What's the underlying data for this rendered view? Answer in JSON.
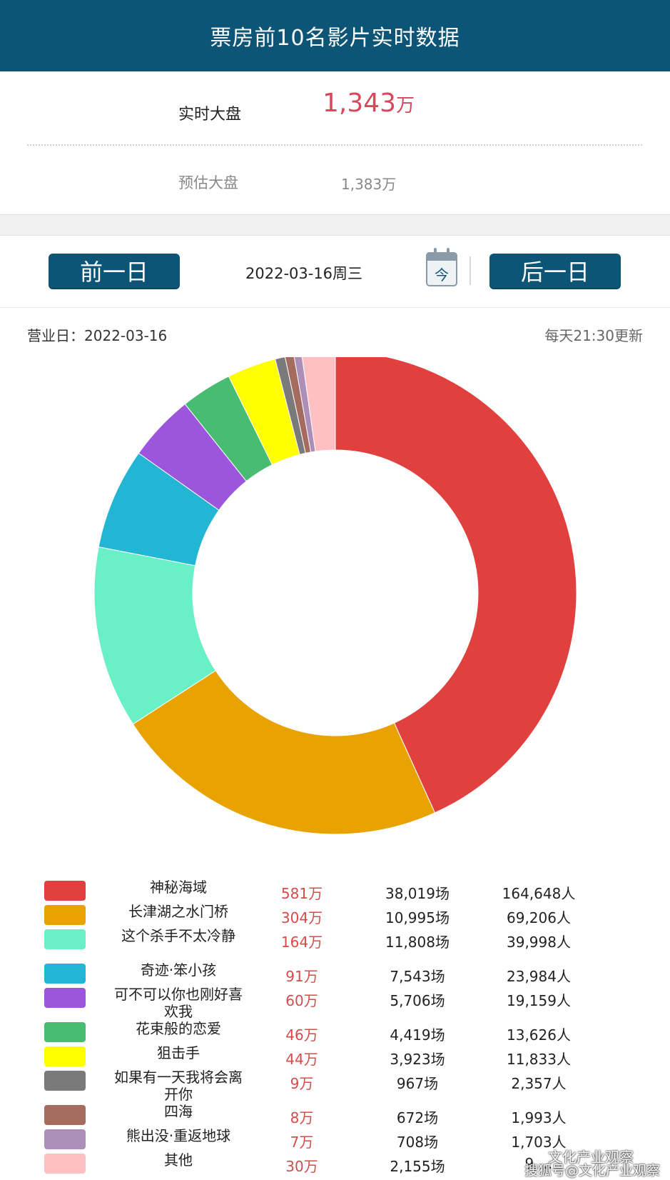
{
  "header": {
    "title": "票房前10名影片实时数据"
  },
  "summary": {
    "live_label": "实时大盘",
    "live_value": "1,343",
    "live_unit": "万",
    "estimate_label": "预估大盘",
    "estimate_value": "1,383万"
  },
  "nav": {
    "prev_label": "前一日",
    "next_label": "后一日",
    "date": "2022-03-16周三",
    "calendar_glyph": "今"
  },
  "info": {
    "business_day": "营业日：2022-03-16",
    "update_note": "每天21:30更新"
  },
  "chart_data": {
    "type": "pie",
    "categories": [
      "神秘海域",
      "长津湖之水门桥",
      "这个杀手不太冷静",
      "奇迹·笨小孩",
      "可不可以你也刚好喜欢我",
      "花束般的恋爱",
      "狙击手",
      "如果有一天我将会离开你",
      "四海",
      "熊出没·重返地球",
      "其他"
    ],
    "values": [
      581,
      304,
      164,
      91,
      60,
      46,
      44,
      9,
      8,
      7,
      30
    ],
    "colors": [
      "#e0403e",
      "#e8a303",
      "#6af0c7",
      "#22b6d4",
      "#9c55dd",
      "#48bd72",
      "#ffff00",
      "#7a7a7a",
      "#a56b5e",
      "#ad8eb8",
      "#ffc0c4"
    ]
  },
  "legend": [
    {
      "name": "神秘海域",
      "box": "581万",
      "shows": "38,019场",
      "people": "164,648人"
    },
    {
      "name": "长津湖之水门桥",
      "box": "304万",
      "shows": "10,995场",
      "people": "69,206人"
    },
    {
      "name": "这个杀手不太冷静",
      "box": "164万",
      "shows": "11,808场",
      "people": "39,998人"
    },
    {
      "name": "奇迹·笨小孩",
      "box": "91万",
      "shows": "7,543场",
      "people": "23,984人"
    },
    {
      "name": "可不可以你也刚好喜欢我",
      "box": "60万",
      "shows": "5,706场",
      "people": "19,159人"
    },
    {
      "name": "花束般的恋爱",
      "box": "46万",
      "shows": "4,419场",
      "people": "13,626人"
    },
    {
      "name": "狙击手",
      "box": "44万",
      "shows": "3,923场",
      "people": "11,833人"
    },
    {
      "name": "如果有一天我将会离开你",
      "box": "9万",
      "shows": "967场",
      "people": "2,357人"
    },
    {
      "name": "四海",
      "box": "8万",
      "shows": "672场",
      "people": "1,993人"
    },
    {
      "name": "熊出没·重返地球",
      "box": "7万",
      "shows": "708场",
      "people": "1,703人"
    },
    {
      "name": "其他",
      "box": "30万",
      "shows": "2,155场",
      "people": "9,…"
    }
  ],
  "watermark": {
    "line1": "文化产业观察",
    "line2": "搜狐号@文化产业观察"
  }
}
